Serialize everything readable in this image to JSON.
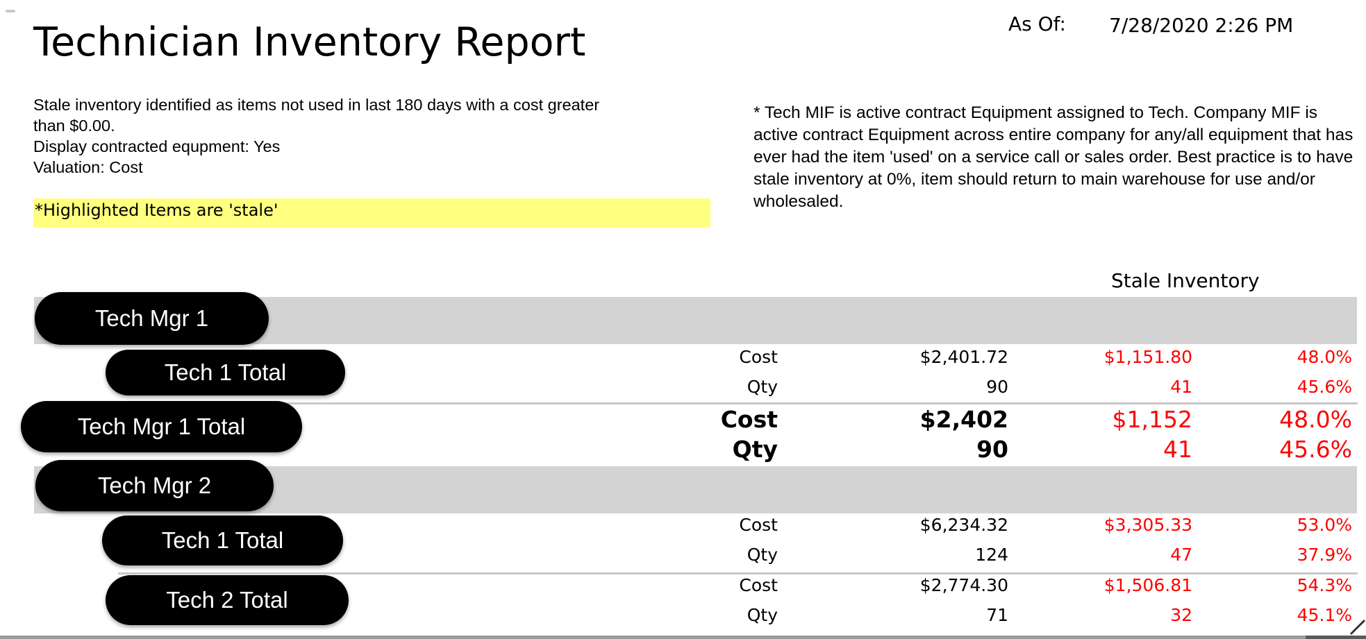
{
  "report": {
    "title": "Technician Inventory Report",
    "as_of_label": "As Of:",
    "as_of_value": "7/28/2020 2:26 PM",
    "params": [
      "Stale inventory identified as items not used in last 180 days with a cost greater",
      "than $0.00.",
      "Display contracted equpment: Yes",
      "Valuation: Cost"
    ],
    "highlight_note": "*Highlighted Items are 'stale'",
    "mif_note": "* Tech MIF is active contract Equipment assigned to Tech.  Company MIF is active contract Equipment across entire company for any/all equipment that has ever had the item 'used' on a service call or sales order. Best practice is to have stale inventory at 0%, item should return to main warehouse for use and/or wholesaled.",
    "section_header": "Stale Inventory"
  },
  "groups": {
    "mgr1": {
      "name": "Tech Mgr 1",
      "tech1": {
        "name": "Tech 1 Total",
        "cost": {
          "label": "Cost",
          "value": "$2,401.72",
          "stale": "$1,151.80",
          "pct": "48.0%"
        },
        "qty": {
          "label": "Qty",
          "value": "90",
          "stale": "41",
          "pct": "45.6%"
        }
      },
      "total": {
        "name": "Tech Mgr 1 Total",
        "cost": {
          "label": "Cost",
          "value": "$2,402",
          "stale": "$1,152",
          "pct": "48.0%"
        },
        "qty": {
          "label": "Qty",
          "value": "90",
          "stale": "41",
          "pct": "45.6%"
        }
      }
    },
    "mgr2": {
      "name": "Tech Mgr 2",
      "tech1": {
        "name": "Tech 1 Total",
        "cost": {
          "label": "Cost",
          "value": "$6,234.32",
          "stale": "$3,305.33",
          "pct": "53.0%"
        },
        "qty": {
          "label": "Qty",
          "value": "124",
          "stale": "47",
          "pct": "37.9%"
        }
      },
      "tech2": {
        "name": "Tech 2 Total",
        "cost": {
          "label": "Cost",
          "value": "$2,774.30",
          "stale": "$1,506.81",
          "pct": "54.3%"
        },
        "qty": {
          "label": "Qty",
          "value": "71",
          "stale": "32",
          "pct": "45.1%"
        }
      }
    }
  }
}
